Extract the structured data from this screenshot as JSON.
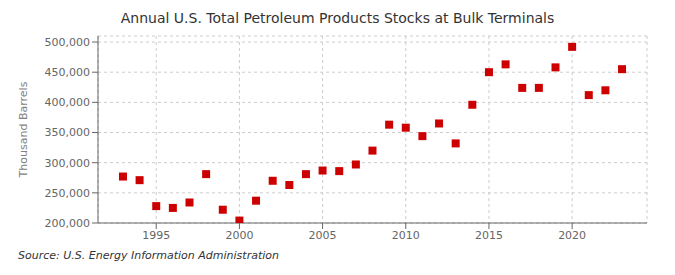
{
  "chart_data": {
    "type": "scatter",
    "title": "Annual U.S. Total Petroleum Products Stocks at Bulk Terminals",
    "ylabel": "Thousand Barrels",
    "annotation": "Source: U.S. Energy Information Administration",
    "x": [
      1993,
      1994,
      1995,
      1996,
      1997,
      1998,
      1999,
      2000,
      2001,
      2002,
      2003,
      2004,
      2005,
      2006,
      2007,
      2008,
      2009,
      2010,
      2011,
      2012,
      2013,
      2014,
      2015,
      2016,
      2017,
      2018,
      2019,
      2020,
      2021,
      2022,
      2023
    ],
    "values": [
      277000,
      271000,
      228000,
      225000,
      234000,
      281000,
      222000,
      204000,
      237000,
      270000,
      263000,
      281000,
      287000,
      286000,
      297000,
      320000,
      363000,
      358000,
      344000,
      365000,
      332000,
      396000,
      450000,
      463000,
      424000,
      424000,
      458000,
      492000,
      412000,
      420000,
      455000
    ],
    "color": "#cc0000",
    "marker": "square",
    "xlim": [
      1991.5,
      2024.5
    ],
    "xticks": [
      1995,
      2000,
      2005,
      2010,
      2015,
      2020
    ],
    "ylim": [
      200000,
      510000
    ],
    "yticks": [
      {
        "value": 200000,
        "label": "200,000"
      },
      {
        "value": 250000,
        "label": "250,000"
      },
      {
        "value": 300000,
        "label": "300,000"
      },
      {
        "value": 350000,
        "label": "350,000"
      },
      {
        "value": 400000,
        "label": "400,000"
      },
      {
        "value": 450000,
        "label": "450,000"
      },
      {
        "value": 500000,
        "label": "500,000"
      }
    ],
    "grid": true
  }
}
